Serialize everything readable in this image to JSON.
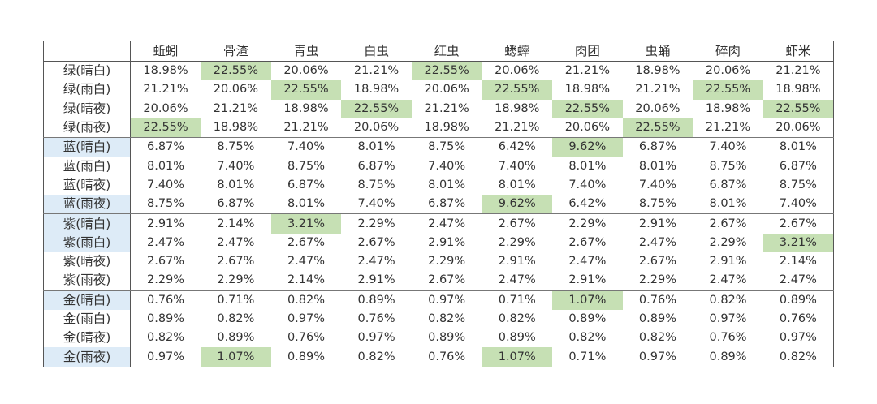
{
  "colors": {
    "best_value_highlight": "#c6e0b4",
    "row_label_highlight": "#ddebf7"
  },
  "table": {
    "corner": "",
    "headers": [
      "蚯蚓",
      "骨渣",
      "青虫",
      "白虫",
      "红虫",
      "蟋蟀",
      "肉团",
      "虫蛹",
      "碎肉",
      "虾米"
    ],
    "rows": [
      {
        "label": "绿(晴白)",
        "label_highlight": false,
        "values": [
          "18.98%",
          "22.55%",
          "20.06%",
          "21.21%",
          "22.55%",
          "20.06%",
          "21.21%",
          "18.98%",
          "20.06%",
          "21.21%"
        ],
        "highlight": [
          1,
          4
        ]
      },
      {
        "label": "绿(雨白)",
        "label_highlight": false,
        "values": [
          "21.21%",
          "20.06%",
          "22.55%",
          "18.98%",
          "20.06%",
          "22.55%",
          "18.98%",
          "21.21%",
          "22.55%",
          "18.98%"
        ],
        "highlight": [
          2,
          5,
          8
        ]
      },
      {
        "label": "绿(晴夜)",
        "label_highlight": false,
        "values": [
          "20.06%",
          "21.21%",
          "18.98%",
          "22.55%",
          "21.21%",
          "18.98%",
          "22.55%",
          "20.06%",
          "18.98%",
          "22.55%"
        ],
        "highlight": [
          3,
          6,
          9
        ]
      },
      {
        "label": "绿(雨夜)",
        "label_highlight": false,
        "values": [
          "22.55%",
          "18.98%",
          "21.21%",
          "20.06%",
          "18.98%",
          "21.21%",
          "20.06%",
          "22.55%",
          "21.21%",
          "20.06%"
        ],
        "highlight": [
          0,
          7
        ]
      },
      {
        "label": "蓝(晴白)",
        "label_highlight": true,
        "values": [
          "6.87%",
          "8.75%",
          "7.40%",
          "8.01%",
          "8.75%",
          "6.42%",
          "9.62%",
          "6.87%",
          "7.40%",
          "8.01%"
        ],
        "highlight": [
          6
        ]
      },
      {
        "label": "蓝(雨白)",
        "label_highlight": false,
        "values": [
          "8.01%",
          "7.40%",
          "8.75%",
          "6.87%",
          "7.40%",
          "7.40%",
          "8.01%",
          "8.01%",
          "8.75%",
          "6.87%"
        ],
        "highlight": []
      },
      {
        "label": "蓝(晴夜)",
        "label_highlight": false,
        "values": [
          "7.40%",
          "8.01%",
          "6.87%",
          "8.75%",
          "8.01%",
          "8.01%",
          "7.40%",
          "7.40%",
          "6.87%",
          "8.75%"
        ],
        "highlight": []
      },
      {
        "label": "蓝(雨夜)",
        "label_highlight": true,
        "values": [
          "8.75%",
          "6.87%",
          "8.01%",
          "7.40%",
          "6.87%",
          "9.62%",
          "6.42%",
          "8.75%",
          "8.01%",
          "7.40%"
        ],
        "highlight": [
          5
        ]
      },
      {
        "label": "紫(晴白)",
        "label_highlight": true,
        "values": [
          "2.91%",
          "2.14%",
          "3.21%",
          "2.29%",
          "2.47%",
          "2.67%",
          "2.29%",
          "2.91%",
          "2.67%",
          "2.67%"
        ],
        "highlight": [
          2
        ]
      },
      {
        "label": "紫(雨白)",
        "label_highlight": true,
        "values": [
          "2.47%",
          "2.47%",
          "2.67%",
          "2.67%",
          "2.91%",
          "2.29%",
          "2.67%",
          "2.47%",
          "2.29%",
          "3.21%"
        ],
        "highlight": [
          9
        ]
      },
      {
        "label": "紫(晴夜)",
        "label_highlight": false,
        "values": [
          "2.67%",
          "2.67%",
          "2.47%",
          "2.47%",
          "2.29%",
          "2.91%",
          "2.47%",
          "2.67%",
          "2.91%",
          "2.14%"
        ],
        "highlight": []
      },
      {
        "label": "紫(雨夜)",
        "label_highlight": false,
        "values": [
          "2.29%",
          "2.29%",
          "2.14%",
          "2.91%",
          "2.67%",
          "2.47%",
          "2.91%",
          "2.29%",
          "2.47%",
          "2.47%"
        ],
        "highlight": []
      },
      {
        "label": "金(晴白)",
        "label_highlight": true,
        "values": [
          "0.76%",
          "0.71%",
          "0.82%",
          "0.89%",
          "0.97%",
          "0.71%",
          "1.07%",
          "0.76%",
          "0.82%",
          "0.89%"
        ],
        "highlight": [
          6
        ]
      },
      {
        "label": "金(雨白)",
        "label_highlight": false,
        "values": [
          "0.89%",
          "0.82%",
          "0.97%",
          "0.76%",
          "0.82%",
          "0.82%",
          "0.89%",
          "0.89%",
          "0.97%",
          "0.76%"
        ],
        "highlight": []
      },
      {
        "label": "金(晴夜)",
        "label_highlight": false,
        "values": [
          "0.82%",
          "0.89%",
          "0.76%",
          "0.97%",
          "0.89%",
          "0.89%",
          "0.82%",
          "0.82%",
          "0.76%",
          "0.97%"
        ],
        "highlight": []
      },
      {
        "label": "金(雨夜)",
        "label_highlight": true,
        "values": [
          "0.97%",
          "1.07%",
          "0.89%",
          "0.82%",
          "0.76%",
          "1.07%",
          "0.71%",
          "0.97%",
          "0.89%",
          "0.82%"
        ],
        "highlight": [
          1,
          5
        ]
      }
    ]
  }
}
